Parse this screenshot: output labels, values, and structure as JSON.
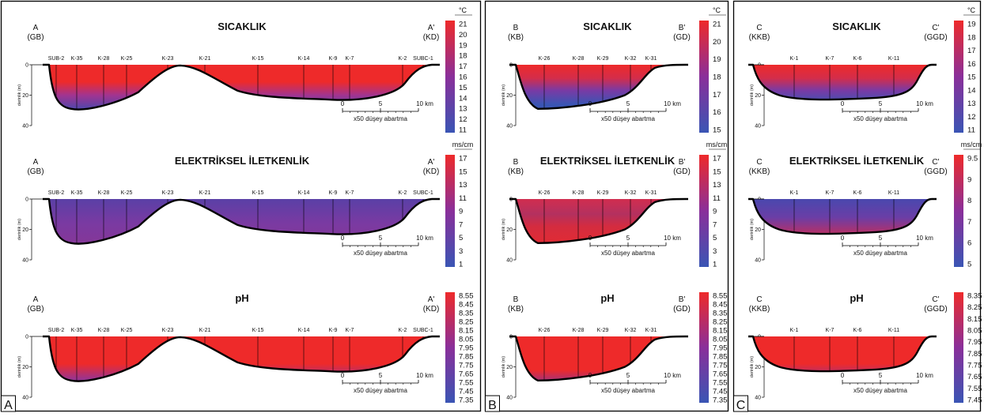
{
  "panels": [
    {
      "letter": "A",
      "left_end": [
        "A",
        "(GB)"
      ],
      "right_end": [
        "A'",
        "(KD)"
      ],
      "stations": [
        "SUB-2",
        "K-35",
        "K-28",
        "K-25",
        "K-23",
        "K-21",
        "K-15",
        "K-14",
        "K-9",
        "K-7",
        "K-2",
        "SUBC-1"
      ],
      "sections": [
        {
          "title": "SICAKLIK",
          "unit": "°C",
          "scale": [
            "21",
            "20",
            "19",
            "18",
            "17",
            "16",
            "15",
            "14",
            "13",
            "12",
            "11"
          ]
        },
        {
          "title": "ELEKTRİKSEL İLETKENLİK",
          "unit": "ms/cm",
          "scale": [
            "17",
            "15",
            "13",
            "11",
            "9",
            "7",
            "5",
            "3",
            "1"
          ]
        },
        {
          "title": "pH",
          "unit": "",
          "scale": [
            "8.55",
            "8.45",
            "8.35",
            "8.25",
            "8.15",
            "8.05",
            "7.95",
            "7.85",
            "7.75",
            "7.65",
            "7.55",
            "7.45",
            "7.35"
          ]
        }
      ]
    },
    {
      "letter": "B",
      "left_end": [
        "B",
        "(KB)"
      ],
      "right_end": [
        "B'",
        "(GD)"
      ],
      "stations": [
        "K-26",
        "K-28",
        "K-29",
        "K-32",
        "K-31"
      ],
      "sections": [
        {
          "title": "SICAKLIK",
          "unit": "°C",
          "scale": [
            "21",
            "20",
            "19",
            "18",
            "17",
            "16",
            "15"
          ]
        },
        {
          "title": "ELEKTRİKSEL İLETKENLİK",
          "unit": "ms/cm",
          "scale": [
            "17",
            "15",
            "13",
            "11",
            "9",
            "7",
            "5",
            "3",
            "1"
          ]
        },
        {
          "title": "pH",
          "unit": "",
          "scale": [
            "8.55",
            "8.45",
            "8.35",
            "8.25",
            "8.15",
            "8.05",
            "7.95",
            "7.85",
            "7.75",
            "7.65",
            "7.55",
            "7.45",
            "7.35"
          ]
        }
      ]
    },
    {
      "letter": "C",
      "left_end": [
        "C",
        "(KKB)"
      ],
      "right_end": [
        "C'",
        "(GGD)"
      ],
      "stations": [
        "K-1",
        "K-7",
        "K-6",
        "K-11"
      ],
      "sections": [
        {
          "title": "SICAKLIK",
          "unit": "°C",
          "scale": [
            "19",
            "18",
            "17",
            "16",
            "15",
            "14",
            "13",
            "12",
            "11"
          ]
        },
        {
          "title": "ELEKTRİKSEL İLETKENLİK",
          "unit": "ms/cm",
          "scale": [
            "9.5",
            "9",
            "8",
            "7",
            "6",
            "5"
          ]
        },
        {
          "title": "pH",
          "unit": "",
          "scale": [
            "8.35",
            "8.25",
            "8.15",
            "8.05",
            "7.95",
            "7.85",
            "7.75",
            "7.65",
            "7.55",
            "7.45"
          ]
        }
      ]
    }
  ],
  "depth_axis": {
    "label": "derinlik (m)",
    "ticks": [
      "0",
      "20",
      "40"
    ]
  },
  "scale_bar": {
    "ticks": [
      "0",
      "5",
      "10 km"
    ],
    "caption": "x50 düşey abartma"
  },
  "colors": {
    "high": "#ee2a2a",
    "mid": "#8a2f9a",
    "low": "#3a55b4"
  }
}
